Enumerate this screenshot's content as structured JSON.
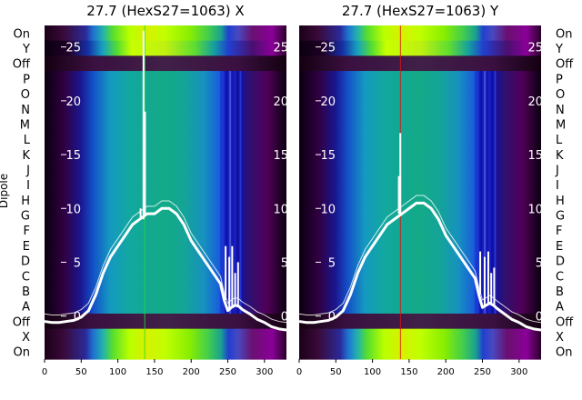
{
  "chart_data": [
    {
      "type": "heatmap",
      "title": "27.7 (HexS27=1063) X",
      "ylabel": "Dipole",
      "row_labels": [
        "On",
        "Y",
        "Off",
        "P",
        "O",
        "N",
        "M",
        "L",
        "K",
        "J",
        "I",
        "H",
        "G",
        "F",
        "E",
        "D",
        "C",
        "B",
        "A",
        "Off",
        "X",
        "On"
      ],
      "xlim": [
        0,
        330
      ],
      "x_ticks": [
        0,
        50,
        100,
        150,
        200,
        250,
        300
      ],
      "overlay_ylim": [
        -4,
        27
      ],
      "overlay_y_ticks": [
        0,
        5,
        10,
        15,
        20,
        25
      ],
      "overlay_color": "#ffffff",
      "colormap": "nipy_spectral",
      "overlay_curve": [
        [
          0,
          -0.5
        ],
        [
          10,
          -0.6
        ],
        [
          20,
          -0.6
        ],
        [
          30,
          -0.5
        ],
        [
          40,
          -0.4
        ],
        [
          50,
          -0.1
        ],
        [
          60,
          0.5
        ],
        [
          70,
          2.0
        ],
        [
          80,
          4.0
        ],
        [
          90,
          5.5
        ],
        [
          100,
          6.5
        ],
        [
          110,
          7.5
        ],
        [
          120,
          8.5
        ],
        [
          130,
          9.0
        ],
        [
          140,
          9.5
        ],
        [
          150,
          9.5
        ],
        [
          160,
          10.0
        ],
        [
          170,
          10.0
        ],
        [
          180,
          9.5
        ],
        [
          190,
          8.5
        ],
        [
          200,
          7.0
        ],
        [
          210,
          6.0
        ],
        [
          220,
          5.0
        ],
        [
          230,
          4.0
        ],
        [
          240,
          3.0
        ],
        [
          245,
          1.5
        ],
        [
          250,
          0.5
        ],
        [
          255,
          0.8
        ],
        [
          260,
          1.0
        ],
        [
          265,
          0.9
        ],
        [
          270,
          0.6
        ],
        [
          280,
          0.2
        ],
        [
          290,
          -0.3
        ],
        [
          300,
          -0.6
        ],
        [
          310,
          -1.0
        ],
        [
          320,
          -1.2
        ],
        [
          330,
          -1.3
        ]
      ],
      "overlay_spikes": [
        [
          135,
          26.5
        ],
        [
          137,
          19.0
        ],
        [
          131,
          10.0
        ],
        [
          247,
          6.5
        ],
        [
          252,
          5.5
        ],
        [
          256,
          6.5
        ],
        [
          260,
          4.0
        ],
        [
          264,
          5.0
        ]
      ]
    },
    {
      "type": "heatmap",
      "title": "27.7 (HexS27=1063) Y",
      "row_labels": [
        "On",
        "Y",
        "Off",
        "P",
        "O",
        "N",
        "M",
        "L",
        "K",
        "J",
        "I",
        "H",
        "G",
        "F",
        "E",
        "D",
        "C",
        "B",
        "A",
        "Off",
        "X",
        "On"
      ],
      "xlim": [
        0,
        330
      ],
      "x_ticks": [
        0,
        50,
        100,
        150,
        200,
        250,
        300
      ],
      "overlay_ylim": [
        -4,
        27
      ],
      "overlay_y_ticks": [
        0,
        5,
        10,
        15,
        20,
        25
      ],
      "overlay_color": "#ffffff",
      "colormap": "nipy_spectral",
      "overlay_curve": [
        [
          0,
          -0.5
        ],
        [
          10,
          -0.6
        ],
        [
          20,
          -0.6
        ],
        [
          30,
          -0.5
        ],
        [
          40,
          -0.4
        ],
        [
          50,
          -0.1
        ],
        [
          60,
          0.5
        ],
        [
          70,
          2.0
        ],
        [
          80,
          4.0
        ],
        [
          90,
          5.5
        ],
        [
          100,
          6.5
        ],
        [
          110,
          7.5
        ],
        [
          120,
          8.5
        ],
        [
          130,
          9.0
        ],
        [
          140,
          9.5
        ],
        [
          150,
          10.0
        ],
        [
          160,
          10.5
        ],
        [
          170,
          10.5
        ],
        [
          180,
          10.0
        ],
        [
          190,
          9.0
        ],
        [
          200,
          7.5
        ],
        [
          210,
          6.5
        ],
        [
          220,
          5.5
        ],
        [
          230,
          4.5
        ],
        [
          240,
          3.5
        ],
        [
          245,
          2.0
        ],
        [
          250,
          0.8
        ],
        [
          255,
          1.0
        ],
        [
          260,
          1.2
        ],
        [
          265,
          1.0
        ],
        [
          270,
          0.7
        ],
        [
          280,
          0.2
        ],
        [
          290,
          -0.3
        ],
        [
          300,
          -0.6
        ],
        [
          310,
          -1.0
        ],
        [
          320,
          -1.2
        ],
        [
          330,
          -1.3
        ]
      ],
      "overlay_spikes": [
        [
          136,
          13.0
        ],
        [
          138,
          17.0
        ],
        [
          133,
          9.0
        ],
        [
          247,
          6.0
        ],
        [
          253,
          5.5
        ],
        [
          258,
          6.0
        ],
        [
          262,
          4.0
        ],
        [
          266,
          4.5
        ]
      ]
    }
  ]
}
